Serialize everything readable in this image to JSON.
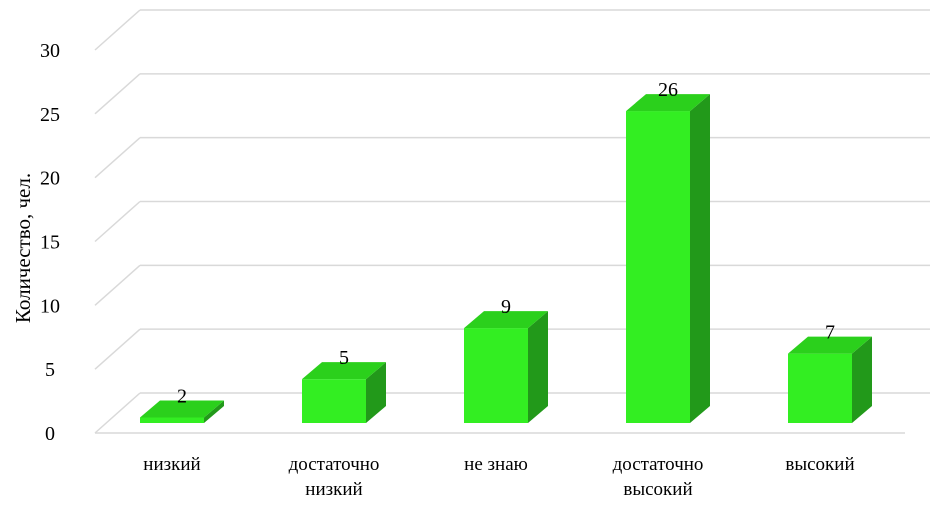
{
  "chart_data": {
    "type": "bar",
    "categories": [
      [
        "низкий"
      ],
      [
        "достаточно",
        "низкий"
      ],
      [
        "не знаю"
      ],
      [
        "достаточно",
        "высокий"
      ],
      [
        "высокий"
      ]
    ],
    "values": [
      2,
      5,
      9,
      26,
      7
    ],
    "data_labels": [
      "2",
      "5",
      "9",
      "26",
      "7"
    ],
    "ylabel": "Количество, чел.",
    "xlabel": "",
    "ylim": [
      0,
      30
    ],
    "yticks": [
      0,
      5,
      10,
      15,
      20,
      25,
      30
    ],
    "grid": true,
    "legend": "none",
    "style": "3d-column",
    "colors": {
      "bar_front": "#33ee22",
      "bar_top": "#2bd01c",
      "bar_side": "#22991a",
      "grid": "#d9d9d9"
    }
  }
}
